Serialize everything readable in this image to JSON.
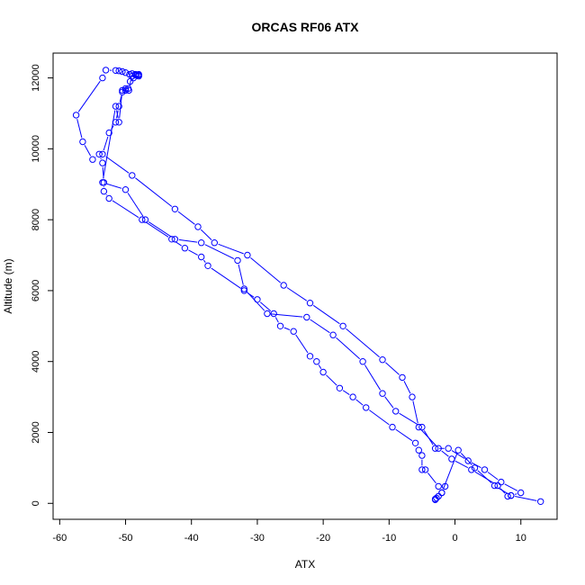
{
  "chart_data": {
    "type": "line",
    "title": "ORCAS RF06 ATX",
    "xlabel": "ATX",
    "ylabel": "Altitude (m)",
    "xlim": [
      -61,
      15.5
    ],
    "ylim": [
      -450,
      12700
    ],
    "xticks": [
      -60,
      -50,
      -40,
      -30,
      -20,
      -10,
      0,
      10
    ],
    "yticks": [
      0,
      2000,
      4000,
      6000,
      8000,
      10000,
      12000
    ],
    "grid": false,
    "color": "#0000ff",
    "series": [
      {
        "x": [
          -48.0,
          -48.5,
          -49.0,
          -49.4,
          -50.0,
          -50.5,
          -51.0,
          -51.5,
          -53.0,
          -53.5,
          -57.5,
          -56.5,
          -55.0,
          -54.0,
          -53.5,
          -53.3,
          -53.3,
          -52.5,
          -47.5,
          -43.0,
          -41.0,
          -38.5,
          -37.5,
          -32.0,
          -30.0,
          -27.5,
          -26.5,
          -24.5,
          -22.0,
          -21.0,
          -20.0,
          -17.5,
          -15.5,
          -13.5,
          -9.5,
          -6.0,
          -5.5,
          -5.0,
          -5.0,
          -4.5,
          -2.5,
          -1.5,
          -2.0,
          -2.5,
          -2.8,
          -3.0,
          -3.0
        ],
        "y": [
          12100,
          12080,
          12050,
          12100,
          12150,
          12180,
          12200,
          12210,
          12220,
          12000,
          10950,
          10200,
          9700,
          9850,
          9600,
          9050,
          8800,
          8600,
          8000,
          7450,
          7200,
          6950,
          6700,
          6000,
          5750,
          5350,
          5000,
          4850,
          4150,
          4000,
          3700,
          3250,
          3000,
          2700,
          2150,
          1700,
          1500,
          1350,
          950,
          950,
          480,
          480,
          300,
          200,
          150,
          120,
          100
        ]
      },
      {
        "x": [
          -48.0,
          -48.3,
          -48.8,
          -49.3,
          -49.6,
          -50.0,
          -50.5,
          -51.0,
          -51.5,
          -52.5,
          -53.5,
          -49.0,
          -42.5,
          -39.0,
          -36.5,
          -31.5,
          -26.0,
          -22.0,
          -17.0,
          -11.0,
          -8.0,
          -6.5,
          -5.5,
          -2.5,
          -0.5,
          2.5,
          6.5,
          8.0,
          8.5,
          13.0
        ],
        "y": [
          12050,
          12080,
          12000,
          11900,
          11700,
          11650,
          11600,
          11200,
          10750,
          10450,
          9850,
          9250,
          8300,
          7800,
          7350,
          7000,
          6150,
          5650,
          5000,
          4050,
          3550,
          3000,
          2150,
          1550,
          1250,
          950,
          500,
          200,
          220,
          50
        ]
      },
      {
        "x": [
          -48.0,
          -48.5,
          -49.0,
          -49.5,
          -50.0,
          -50.5,
          -51.0,
          -51.5,
          -53.5,
          -50.0,
          -47.0,
          -42.5,
          -38.5,
          -33.0,
          -32.0,
          -28.5,
          -22.5,
          -18.5,
          -14.0,
          -11.0,
          -9.0,
          -5.0,
          -3.0,
          -1.0,
          2.0,
          4.5,
          7.0,
          10.0,
          8.5,
          6.0,
          3.0,
          0.5,
          -2.0
        ],
        "y": [
          12080,
          12100,
          12120,
          11650,
          11700,
          11650,
          10750,
          11200,
          9050,
          8850,
          8000,
          7450,
          7350,
          6850,
          6050,
          5350,
          5250,
          4750,
          4000,
          3100,
          2600,
          2150,
          1550,
          1550,
          1200,
          950,
          600,
          300,
          220,
          500,
          1000,
          1500,
          300
        ]
      }
    ]
  }
}
